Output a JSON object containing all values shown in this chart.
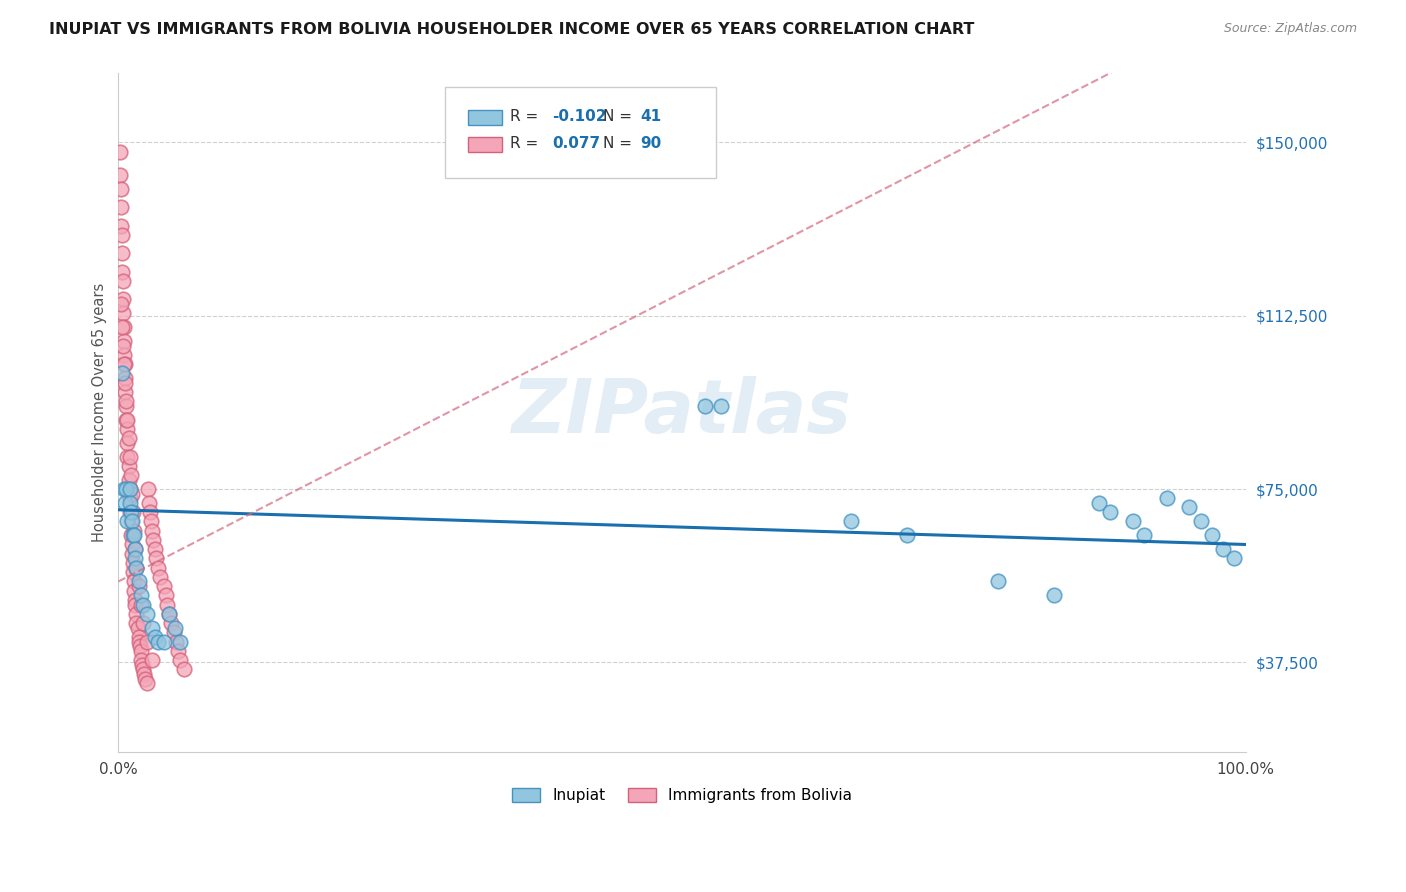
{
  "title": "INUPIAT VS IMMIGRANTS FROM BOLIVIA HOUSEHOLDER INCOME OVER 65 YEARS CORRELATION CHART",
  "source": "Source: ZipAtlas.com",
  "ylabel": "Householder Income Over 65 years",
  "y_ticks": [
    37500,
    75000,
    112500,
    150000
  ],
  "y_tick_labels": [
    "$37,500",
    "$75,000",
    "$112,500",
    "$150,000"
  ],
  "legend_label_1": "Inupiat",
  "legend_label_2": "Immigrants from Bolivia",
  "R1": "-0.102",
  "N1": "41",
  "R2": "0.077",
  "N2": "90",
  "color_inupiat": "#92c5de",
  "color_bolivia": "#f4a6b8",
  "color_inupiat_edge": "#4393c3",
  "color_bolivia_edge": "#d6607a",
  "color_inupiat_line": "#1a6faf",
  "color_bolivia_line": "#d4687e",
  "inupiat_x": [
    0.003,
    0.005,
    0.006,
    0.007,
    0.008,
    0.01,
    0.01,
    0.011,
    0.012,
    0.013,
    0.014,
    0.015,
    0.015,
    0.016,
    0.018,
    0.02,
    0.022,
    0.025,
    0.03,
    0.032,
    0.035,
    0.04,
    0.045,
    0.05,
    0.055,
    0.52,
    0.535,
    0.65,
    0.7,
    0.78,
    0.83,
    0.87,
    0.88,
    0.9,
    0.91,
    0.93,
    0.95,
    0.96,
    0.97,
    0.98,
    0.99
  ],
  "inupiat_y": [
    100000,
    75000,
    72000,
    75000,
    68000,
    75000,
    72000,
    70000,
    68000,
    65000,
    65000,
    62000,
    60000,
    58000,
    55000,
    52000,
    50000,
    48000,
    45000,
    43000,
    42000,
    42000,
    48000,
    45000,
    42000,
    93000,
    93000,
    68000,
    65000,
    55000,
    52000,
    72000,
    70000,
    68000,
    65000,
    73000,
    71000,
    68000,
    65000,
    62000,
    60000
  ],
  "bolivia_x": [
    0.001,
    0.001,
    0.002,
    0.002,
    0.002,
    0.003,
    0.003,
    0.003,
    0.004,
    0.004,
    0.004,
    0.005,
    0.005,
    0.005,
    0.006,
    0.006,
    0.006,
    0.007,
    0.007,
    0.008,
    0.008,
    0.008,
    0.009,
    0.009,
    0.01,
    0.01,
    0.01,
    0.011,
    0.011,
    0.012,
    0.012,
    0.013,
    0.013,
    0.014,
    0.014,
    0.015,
    0.015,
    0.016,
    0.016,
    0.017,
    0.018,
    0.018,
    0.019,
    0.02,
    0.02,
    0.021,
    0.022,
    0.023,
    0.024,
    0.025,
    0.026,
    0.027,
    0.028,
    0.029,
    0.03,
    0.031,
    0.032,
    0.033,
    0.035,
    0.037,
    0.04,
    0.042,
    0.043,
    0.045,
    0.047,
    0.049,
    0.051,
    0.053,
    0.055,
    0.058,
    0.002,
    0.003,
    0.004,
    0.005,
    0.006,
    0.007,
    0.008,
    0.009,
    0.01,
    0.011,
    0.012,
    0.013,
    0.014,
    0.015,
    0.016,
    0.018,
    0.02,
    0.022,
    0.025,
    0.03
  ],
  "bolivia_y": [
    148000,
    143000,
    140000,
    136000,
    132000,
    130000,
    126000,
    122000,
    120000,
    116000,
    113000,
    110000,
    107000,
    104000,
    102000,
    99000,
    96000,
    93000,
    90000,
    88000,
    85000,
    82000,
    80000,
    77000,
    75000,
    73000,
    70000,
    68000,
    65000,
    63000,
    61000,
    59000,
    57000,
    55000,
    53000,
    51000,
    50000,
    48000,
    46000,
    45000,
    43000,
    42000,
    41000,
    40000,
    38000,
    37000,
    36000,
    35000,
    34000,
    33000,
    75000,
    72000,
    70000,
    68000,
    66000,
    64000,
    62000,
    60000,
    58000,
    56000,
    54000,
    52000,
    50000,
    48000,
    46000,
    44000,
    42000,
    40000,
    38000,
    36000,
    115000,
    110000,
    106000,
    102000,
    98000,
    94000,
    90000,
    86000,
    82000,
    78000,
    74000,
    70000,
    66000,
    62000,
    58000,
    54000,
    50000,
    46000,
    42000,
    38000
  ],
  "xlim": [
    0.0,
    1.0
  ],
  "ylim": [
    18000,
    165000
  ],
  "x_ticks": [
    0.0,
    0.1,
    0.2,
    0.3,
    0.4,
    0.5,
    0.6,
    0.7,
    0.8,
    0.9,
    1.0
  ],
  "x_tick_labels_show": {
    "0.0": "0.0%",
    "1.0": "100.0%"
  }
}
